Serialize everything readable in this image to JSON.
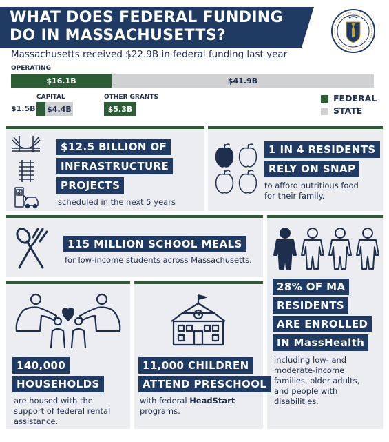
{
  "header": {
    "title_line1": "WHAT DOES FEDERAL FUNDING",
    "title_line2": "DO IN MASSACHUSETTS?",
    "subtitle": "Massachusetts received $22.9B in federal funding last year",
    "seal_label": "Commonwealth of Massachusetts seal"
  },
  "funding": {
    "operating_label": "OPERATING",
    "operating_federal": "$16.1B",
    "operating_state": "$41.9B",
    "operating_federal_value": 16.1,
    "operating_state_value": 41.9,
    "capital_label": "CAPITAL",
    "capital_federal": "$1.5B",
    "capital_state": "$4.4B",
    "other_label": "OTHER GRANTS",
    "other_federal": "$5.3B"
  },
  "legend": {
    "federal_label": "FEDERAL",
    "state_label": "STATE",
    "federal_color": "#2c5e35",
    "state_color": "#d0d1d3"
  },
  "cards": {
    "infrastructure": {
      "line1": "$12.5 BILLION OF",
      "line2": "INFRASTRUCTURE",
      "line3": "PROJECTS",
      "desc": "scheduled in the next 5 years",
      "icons": [
        "bridge-icon",
        "railway-icon",
        "ev-charging-icon"
      ]
    },
    "snap": {
      "line1": "1 IN 4 RESIDENTS",
      "line2": "RELY ON SNAP",
      "desc1": "to afford nutritious food",
      "desc2": "for their family.",
      "icons": [
        "apple-icon"
      ]
    },
    "meals": {
      "headline": "115 MILLION SCHOOL MEALS",
      "desc": "for low-income students across Massachusetts.",
      "icons": [
        "spoon-fork-icon"
      ]
    },
    "masshealth": {
      "line1": "28% OF MA",
      "line2": "RESIDENTS",
      "line3": "ARE ENROLLED",
      "line4": "IN MassHealth",
      "desc1": "including low- and",
      "desc2": "moderate-income",
      "desc3": "families, older adults,",
      "desc4": "and people with",
      "desc5": "disabilities.",
      "icons": [
        "person-icon"
      ]
    },
    "housing": {
      "line1": "140,000",
      "line2": "HOUSEHOLDS",
      "desc1": "are housed with the",
      "desc2": "support of federal rental",
      "desc3": "assistance.",
      "icons": [
        "family-heart-icon"
      ]
    },
    "preschool": {
      "line1": "11,000 CHILDREN",
      "line2": "ATTEND PRESCHOOL",
      "desc_prefix": "with federal ",
      "desc_bold": "HeadStart",
      "desc2": "programs.",
      "icons": [
        "school-building-icon"
      ]
    }
  }
}
